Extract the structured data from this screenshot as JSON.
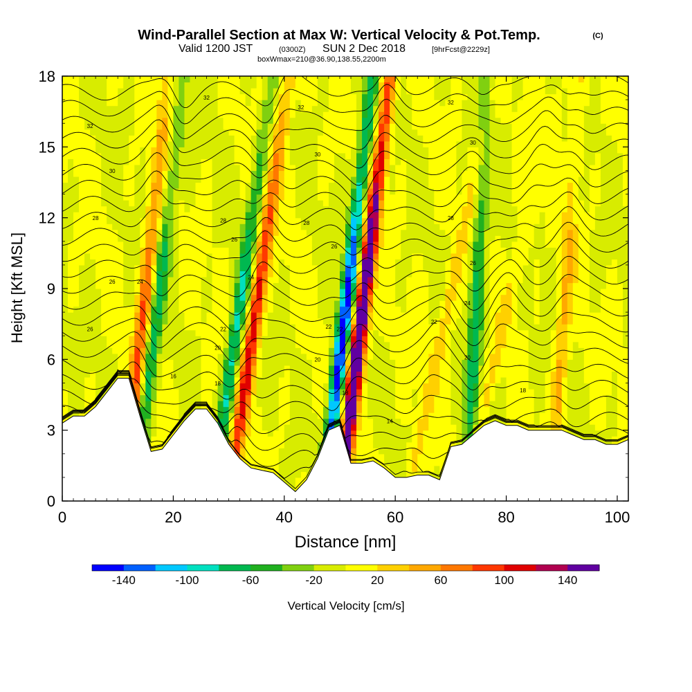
{
  "chart_data": {
    "type": "heatmap",
    "title": "Wind-Parallel Section at Max W: Vertical Velocity & Pot.Temp.",
    "title_mark": "(C)",
    "subtitle_prefix": "Valid 1200 JST",
    "subtitle_utc": "(0300Z)",
    "subtitle_date": "SUN 2 Dec 2018",
    "subtitle_fcst": "[9hrFcst@2229z]",
    "subtitle2": "boxWmax=210@36.90,138.55,2200m",
    "xlabel": "Distance [nm]",
    "ylabel": "Height [Kft MSL]",
    "xlim": [
      0,
      102
    ],
    "ylim": [
      0,
      18
    ],
    "x_ticks": [
      0,
      20,
      40,
      60,
      80,
      100
    ],
    "y_ticks": [
      0,
      3,
      6,
      9,
      12,
      15,
      18
    ],
    "colorbar": {
      "label": "Vertical Velocity [cm/s]",
      "min": -160,
      "max": 160,
      "step": 20,
      "tick_labels": [
        "-140",
        "-100",
        "-60",
        "-20",
        "20",
        "60",
        "100",
        "140"
      ],
      "colors": [
        "#0000ff",
        "#0060ff",
        "#00c8ff",
        "#00e0c0",
        "#00b850",
        "#20b020",
        "#80d010",
        "#d8ec00",
        "#ffff00",
        "#ffd000",
        "#ffa800",
        "#ff7800",
        "#ff3800",
        "#e00000",
        "#b00050",
        "#6000a0"
      ]
    },
    "terrain": {
      "x": [
        0,
        2,
        4,
        6,
        8,
        10,
        12,
        14,
        16,
        18,
        20,
        22,
        24,
        26,
        28,
        30,
        32,
        34,
        36,
        38,
        40,
        42,
        44,
        46,
        48,
        50,
        52,
        54,
        56,
        58,
        60,
        62,
        64,
        66,
        68,
        70,
        72,
        74,
        76,
        78,
        80,
        82,
        84,
        86,
        88,
        90,
        92,
        94,
        96,
        98,
        100,
        102
      ],
      "height": [
        3.3,
        3.6,
        3.6,
        4.0,
        4.6,
        5.2,
        5.2,
        3.6,
        2.1,
        2.2,
        2.8,
        3.4,
        3.9,
        3.9,
        3.3,
        2.4,
        1.8,
        1.4,
        1.3,
        1.2,
        0.8,
        0.4,
        0.9,
        1.8,
        3.0,
        3.2,
        1.6,
        1.6,
        1.7,
        1.4,
        1.0,
        1.0,
        1.1,
        1.1,
        0.9,
        2.3,
        2.4,
        2.8,
        3.2,
        3.4,
        3.2,
        3.2,
        3.0,
        3.0,
        3.0,
        3.0,
        2.8,
        2.6,
        2.6,
        2.4,
        2.4,
        2.6
      ]
    },
    "updrafts": [
      {
        "x_base": 11,
        "tilt": 0.45,
        "w": 85
      },
      {
        "x_base": 30,
        "tilt": 0.6,
        "w": 115
      },
      {
        "x_base": 50,
        "tilt": 0.5,
        "w": 210
      },
      {
        "x_base": 62,
        "tilt": 0.9,
        "w": 35
      },
      {
        "x_base": 72,
        "tilt": 1.0,
        "w": 30
      },
      {
        "x_base": 88,
        "tilt": 0.3,
        "w": 45
      }
    ],
    "downdrafts": [
      {
        "x_base": 13,
        "tilt": 0.5,
        "w": -70
      },
      {
        "x_base": 27,
        "tilt": 0.6,
        "w": -85
      },
      {
        "x_base": 47,
        "tilt": 0.5,
        "w": -155
      },
      {
        "x_base": 73,
        "tilt": 0.2,
        "w": -75
      }
    ],
    "theta_contour_labels": [
      "14",
      "16",
      "18",
      "20",
      "22",
      "24",
      "26",
      "28",
      "30",
      "32"
    ]
  }
}
